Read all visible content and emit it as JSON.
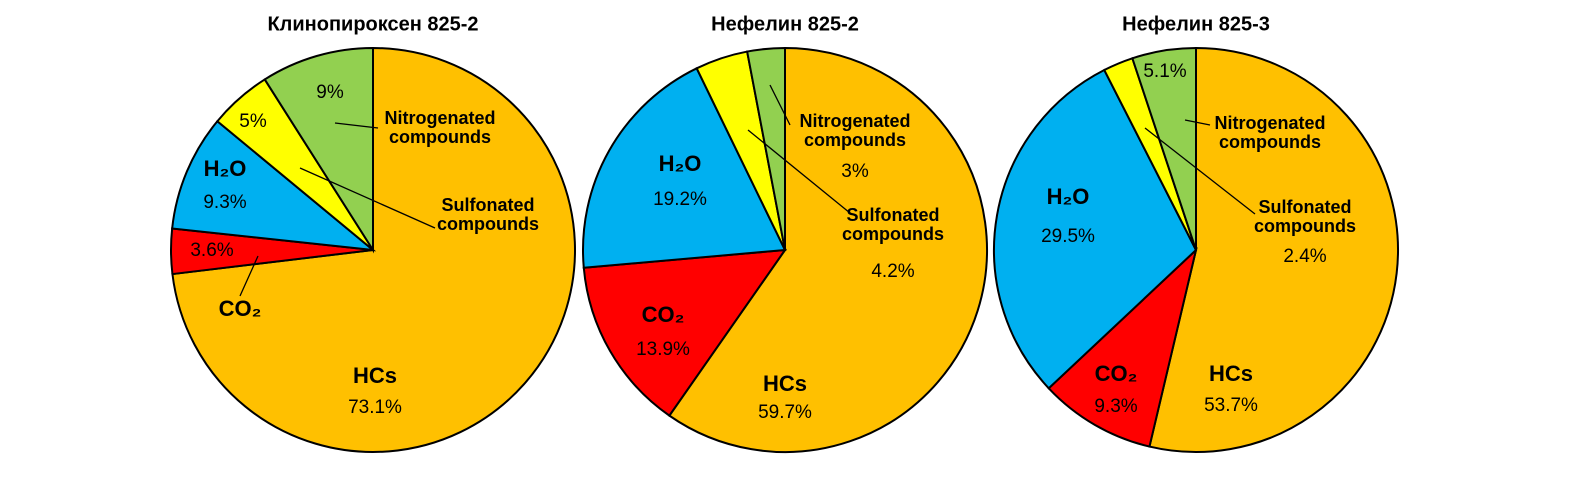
{
  "chart_data": [
    {
      "type": "pie",
      "title": "Клинопироксен 825-2",
      "categories": [
        "HCs",
        "CO₂",
        "H₂O",
        "Sulfonated compounds",
        "Nitrogenated compounds"
      ],
      "values": [
        73.1,
        3.6,
        9.3,
        5,
        9
      ],
      "value_labels": [
        "73.1%",
        "3.6%",
        "9.3%",
        "5%",
        "9%"
      ],
      "colors": [
        "#FFC000",
        "#FF0000",
        "#00B0F0",
        "#FFFF00",
        "#92D050"
      ]
    },
    {
      "type": "pie",
      "title": "Нефелин 825-2",
      "categories": [
        "HCs",
        "CO₂",
        "H₂O",
        "Sulfonated compounds",
        "Nitrogenated compounds"
      ],
      "values": [
        59.7,
        13.9,
        19.2,
        4.2,
        3
      ],
      "value_labels": [
        "59.7%",
        "13.9%",
        "19.2%",
        "4.2%",
        "3%"
      ],
      "colors": [
        "#FFC000",
        "#FF0000",
        "#00B0F0",
        "#FFFF00",
        "#92D050"
      ]
    },
    {
      "type": "pie",
      "title": "Нефелин 825-3",
      "categories": [
        "HCs",
        "CO₂",
        "H₂O",
        "Sulfonated compounds",
        "Nitrogenated compounds"
      ],
      "values": [
        53.7,
        9.3,
        29.5,
        2.4,
        5.1
      ],
      "value_labels": [
        "53.7%",
        "9.3%",
        "29.5%",
        "2.4%",
        "5.1%"
      ],
      "colors": [
        "#FFC000",
        "#FF0000",
        "#00B0F0",
        "#FFFF00",
        "#92D050"
      ]
    }
  ]
}
